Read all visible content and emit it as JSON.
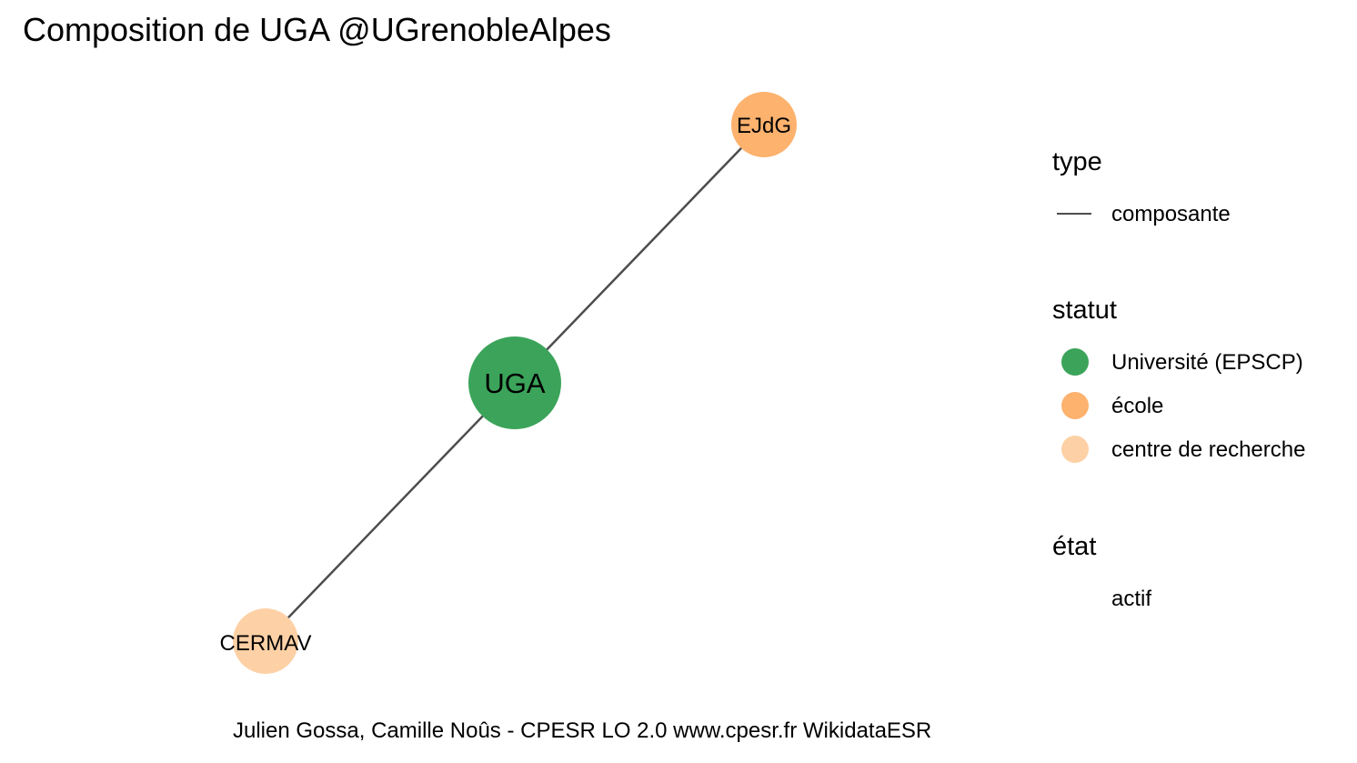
{
  "title": "Composition de UGA @UGrenobleAlpes",
  "caption": "Julien Gossa, Camille Noûs - CPESR LO 2.0 www.cpesr.fr WikidataESR",
  "graph": {
    "nodes": [
      {
        "id": "UGA",
        "label": "UGA",
        "statut": "Université (EPSCP)",
        "color": "#3ba45a"
      },
      {
        "id": "EJdG",
        "label": "EJdG",
        "statut": "école",
        "color": "#fdb26e"
      },
      {
        "id": "CERMAV",
        "label": "CERMAV",
        "statut": "centre de recherche",
        "color": "#fdd1a5"
      }
    ],
    "edges": [
      {
        "from": "UGA",
        "to": "EJdG",
        "type": "composante"
      },
      {
        "from": "UGA",
        "to": "CERMAV",
        "type": "composante"
      }
    ],
    "edge_color": "#4d4d4d"
  },
  "legend": {
    "type": {
      "title": "type",
      "items": [
        {
          "label": "composante"
        }
      ]
    },
    "statut": {
      "title": "statut",
      "items": [
        {
          "label": "Université (EPSCP)",
          "color": "#3ba45a"
        },
        {
          "label": "école",
          "color": "#fdb26e"
        },
        {
          "label": "centre de recherche",
          "color": "#fdd1a5"
        }
      ]
    },
    "etat": {
      "title": "état",
      "items": [
        {
          "label": "actif"
        }
      ]
    }
  }
}
